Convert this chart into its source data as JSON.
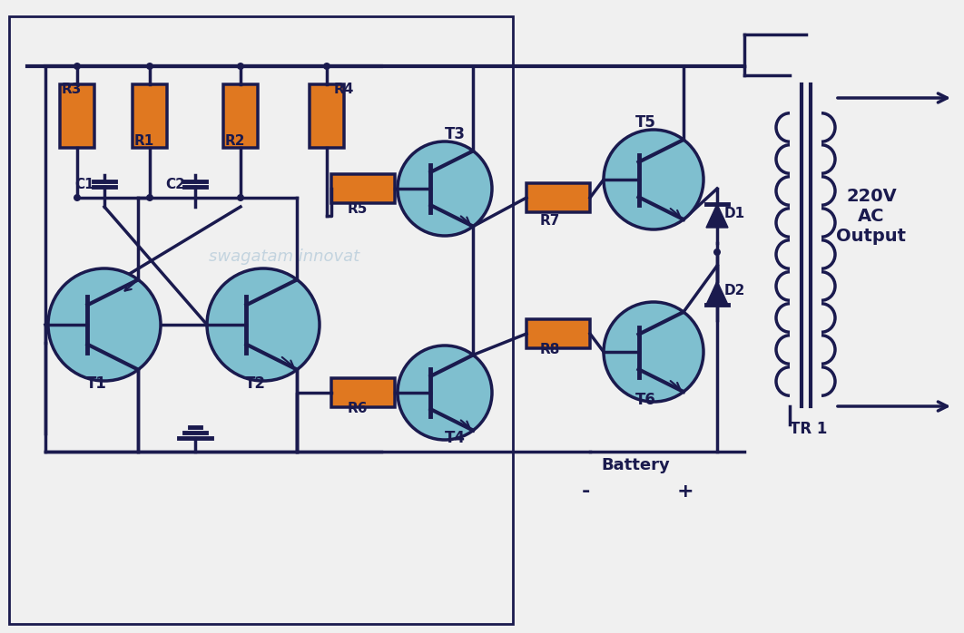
{
  "bg_color": "#f0f0f0",
  "wire_color": "#1a1a4e",
  "transistor_fill": "#7fbfcf",
  "transistor_edge": "#1a1a4e",
  "resistor_fill": "#e07820",
  "resistor_edge": "#1a1a4e",
  "diode_fill": "#1a1a4e",
  "transformer_fill": "#1a1a4e",
  "text_color": "#1a1a4e",
  "watermark": "swagatam innovat",
  "watermark_color": "#b0c8d8",
  "label_220v": "220V\nAC\nOutput",
  "label_battery": "Battery",
  "label_tr1": "TR 1",
  "label_minus": "-",
  "label_plus": "+",
  "lw": 2.5
}
